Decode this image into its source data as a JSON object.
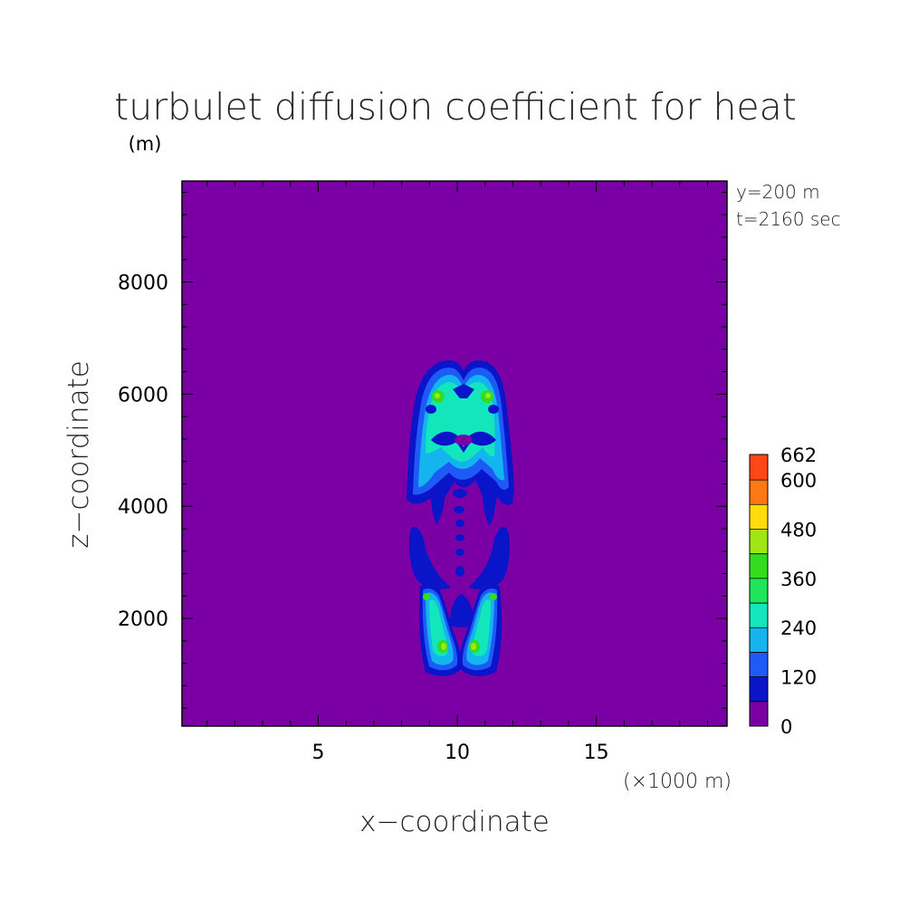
{
  "chart_data": {
    "type": "heatmap",
    "title": "turbulet diffusion coefficient for heat",
    "title_unit": "(m)",
    "xlabel": "x−coordinate",
    "ylabel": "z−coordinate",
    "x_unit_label": "(×1000 m)",
    "annotation_lines": [
      "y=200 m",
      "t=2160 sec"
    ],
    "xlim": [
      0.1,
      19.7
    ],
    "ylim": [
      80,
      9800
    ],
    "x_ticks": [
      5,
      10,
      15
    ],
    "y_ticks": [
      2000,
      4000,
      6000,
      8000
    ],
    "colorbar": {
      "levels": [
        0,
        60,
        120,
        180,
        240,
        300,
        360,
        420,
        480,
        540,
        600,
        662
      ],
      "labels": [
        "662",
        "600",
        "480",
        "360",
        "240",
        "120",
        "0"
      ],
      "colors": [
        "#7a00a6",
        "#0a14c8",
        "#1e5af5",
        "#14b4ee",
        "#14e6bc",
        "#1ee65a",
        "#34dc1e",
        "#a0e614",
        "#ffdc0a",
        "#ff7814",
        "#ff4614",
        "#e61e1e"
      ]
    },
    "background_value": 0,
    "max_value": 662,
    "features": [
      {
        "region": "upper plume",
        "x_range": [
          8.4,
          12.0
        ],
        "z_range": [
          4000,
          6650
        ],
        "peak_value": 390
      },
      {
        "region": "lower left lobe",
        "x_range": [
          9.0,
          10.0
        ],
        "z_range": [
          1000,
          2600
        ],
        "peak_value": 420
      },
      {
        "region": "lower right lobe",
        "x_range": [
          10.6,
          11.6
        ],
        "z_range": [
          1000,
          2600
        ],
        "peak_value": 420
      },
      {
        "region": "central column",
        "x_range": [
          9.9,
          10.4
        ],
        "z_range": [
          1900,
          4400
        ],
        "peak_value": 100
      }
    ]
  }
}
